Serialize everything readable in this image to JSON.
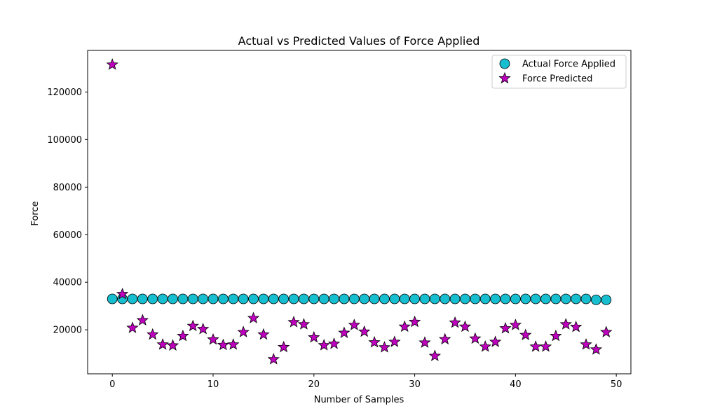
{
  "chart_data": {
    "type": "scatter",
    "title": "Actual vs Predicted Values of Force Applied",
    "xlabel": "Number of Samples",
    "ylabel": "Force",
    "xlim": [
      -2.45,
      51.45
    ],
    "ylim": [
      1500,
      137500
    ],
    "xticks": [
      0,
      10,
      20,
      30,
      40,
      50
    ],
    "yticks": [
      20000,
      40000,
      60000,
      80000,
      100000,
      120000
    ],
    "grid": false,
    "legend_position": "top-right",
    "series": [
      {
        "name": "Actual Force Applied",
        "marker": "circle",
        "color": "#17becf",
        "edge_color": "#000000",
        "x": [
          0,
          1,
          2,
          3,
          4,
          5,
          6,
          7,
          8,
          9,
          10,
          11,
          12,
          13,
          14,
          15,
          16,
          17,
          18,
          19,
          20,
          21,
          22,
          23,
          24,
          25,
          26,
          27,
          28,
          29,
          30,
          31,
          32,
          33,
          34,
          35,
          36,
          37,
          38,
          39,
          40,
          41,
          42,
          43,
          44,
          45,
          46,
          47,
          48,
          49
        ],
        "y": [
          33000,
          33000,
          33000,
          33000,
          33000,
          33000,
          33000,
          33000,
          33000,
          33000,
          33000,
          33000,
          33000,
          33000,
          33000,
          33000,
          33000,
          33000,
          33000,
          33000,
          33000,
          33000,
          33000,
          33000,
          33000,
          33000,
          33000,
          33000,
          33000,
          33000,
          33000,
          33000,
          33000,
          33000,
          33000,
          33000,
          33000,
          33000,
          33000,
          33000,
          33000,
          33000,
          33000,
          33000,
          33000,
          33000,
          33000,
          33000,
          32600,
          32600
        ]
      },
      {
        "name": "Force Predicted",
        "marker": "star",
        "color": "#bf00bf",
        "edge_color": "#000000",
        "x": [
          0,
          1,
          2,
          3,
          4,
          5,
          6,
          7,
          8,
          9,
          10,
          11,
          12,
          13,
          14,
          15,
          16,
          17,
          18,
          19,
          20,
          21,
          22,
          23,
          24,
          25,
          26,
          27,
          28,
          29,
          30,
          31,
          32,
          33,
          34,
          35,
          36,
          37,
          38,
          39,
          40,
          41,
          42,
          43,
          44,
          45,
          46,
          47,
          48,
          49
        ],
        "y": [
          131500,
          35000,
          20800,
          24000,
          18000,
          13800,
          13400,
          17400,
          21600,
          20300,
          15900,
          13600,
          13800,
          19000,
          24900,
          18000,
          7600,
          12700,
          23200,
          22300,
          16800,
          13500,
          14100,
          18700,
          22000,
          19200,
          14700,
          12600,
          14900,
          21300,
          23300,
          14600,
          9000,
          16000,
          23000,
          21300,
          16300,
          12900,
          14900,
          20600,
          22000,
          17800,
          12900,
          12900,
          17400,
          22300,
          21200,
          13800,
          11700,
          19000
        ]
      }
    ]
  }
}
